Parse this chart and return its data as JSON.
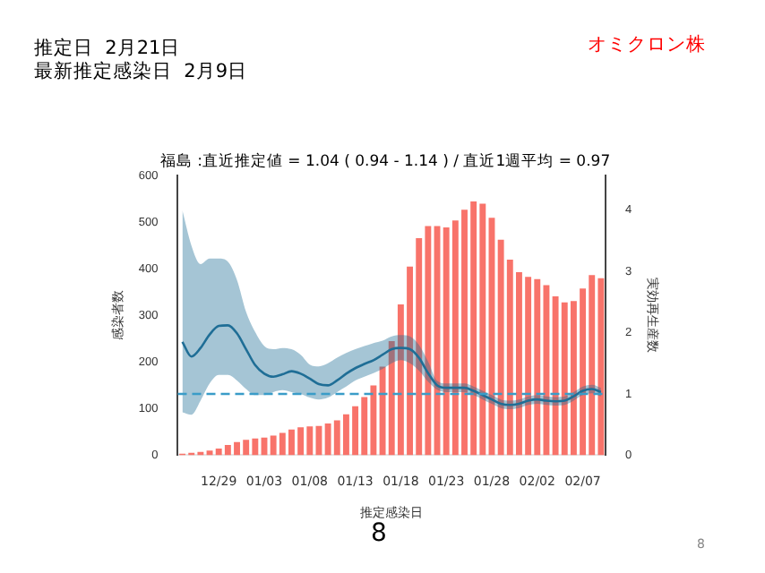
{
  "chart_data": {
    "type": "bar",
    "title": "福島 :直近推定値 = 1.04 ( 0.94 - 1.14 ) / 直近1週平均 = 0.97",
    "xlabel": "推定感染日",
    "ylabel": "感染者数",
    "y2label": "実効再生産数",
    "annotations": [
      "推定日  2月21日",
      "最新推定感染日  2月9日",
      "オミクロン株",
      "8",
      "8"
    ],
    "categories": [
      null,
      null,
      null,
      null,
      "12/29",
      null,
      null,
      null,
      null,
      "01/03",
      null,
      null,
      null,
      null,
      "01/08",
      null,
      null,
      null,
      null,
      "01/13",
      null,
      null,
      null,
      null,
      "01/18",
      null,
      null,
      null,
      null,
      "01/23",
      null,
      null,
      null,
      null,
      "01/28",
      null,
      null,
      null,
      null,
      "02/02",
      null,
      null,
      null,
      null,
      "02/07",
      null,
      null
    ],
    "series": [
      {
        "color": "#f8736a",
        "values": [
          3,
          5,
          7,
          10,
          14,
          22,
          28,
          33,
          36,
          38,
          42,
          48,
          55,
          60,
          62,
          63,
          68,
          75,
          88,
          105,
          125,
          150,
          190,
          245,
          324,
          405,
          466,
          492,
          492,
          489,
          504,
          527,
          545,
          540,
          510,
          463,
          420,
          393,
          383,
          378,
          365,
          341,
          328,
          331,
          358,
          387,
          380
        ]
      },
      {
        "type": "line",
        "axis": "y2",
        "color": "#1f6e96",
        "values": [
          1.85,
          1.61,
          1.75,
          1.97,
          2.11,
          2.12,
          1.99,
          1.73,
          1.47,
          1.33,
          1.28,
          1.32,
          1.37,
          1.33,
          1.25,
          1.16,
          1.14,
          1.22,
          1.33,
          1.42,
          1.49,
          1.55,
          1.64,
          1.73,
          1.75,
          1.73,
          1.59,
          1.34,
          1.14,
          1.1,
          1.1,
          1.1,
          1.05,
          0.98,
          0.91,
          0.84,
          0.82,
          0.84,
          0.89,
          0.91,
          0.89,
          0.88,
          0.89,
          0.96,
          1.05,
          1.08,
          1.03
        ],
        "upper": [
          4.0,
          3.42,
          3.12,
          3.21,
          3.21,
          3.16,
          2.86,
          2.34,
          2.01,
          1.78,
          1.73,
          1.75,
          1.73,
          1.64,
          1.48,
          1.45,
          1.5,
          1.59,
          1.67,
          1.73,
          1.78,
          1.83,
          1.87,
          1.94,
          1.96,
          1.94,
          1.8,
          1.53,
          1.21,
          1.17,
          1.17,
          1.17,
          1.12,
          1.05,
          0.98,
          0.91,
          0.89,
          0.91,
          0.96,
          0.98,
          0.96,
          0.95,
          0.96,
          1.03,
          1.12,
          1.15,
          1.1
        ],
        "lower": [
          0.7,
          0.66,
          0.89,
          1.17,
          1.31,
          1.31,
          1.22,
          1.08,
          0.98,
          0.98,
          1.03,
          1.06,
          1.03,
          1.0,
          0.94,
          0.91,
          0.94,
          1.03,
          1.12,
          1.22,
          1.28,
          1.34,
          1.41,
          1.5,
          1.55,
          1.5,
          1.38,
          1.2,
          1.07,
          1.03,
          1.03,
          1.03,
          0.98,
          0.91,
          0.84,
          0.77,
          0.75,
          0.77,
          0.82,
          0.84,
          0.82,
          0.81,
          0.82,
          0.89,
          0.98,
          1.01,
          0.96
        ]
      }
    ],
    "ylim": [
      0,
      600
    ],
    "yticks": [
      0,
      100,
      200,
      300,
      400,
      500,
      600
    ],
    "y2lim": [
      0,
      4.56
    ],
    "y2ticks": [
      0,
      1,
      2,
      3,
      4
    ],
    "ref_lines": [
      {
        "axis": "y2",
        "value": 1,
        "color": "#3a9cc8",
        "line_style": "dashed"
      }
    ]
  }
}
